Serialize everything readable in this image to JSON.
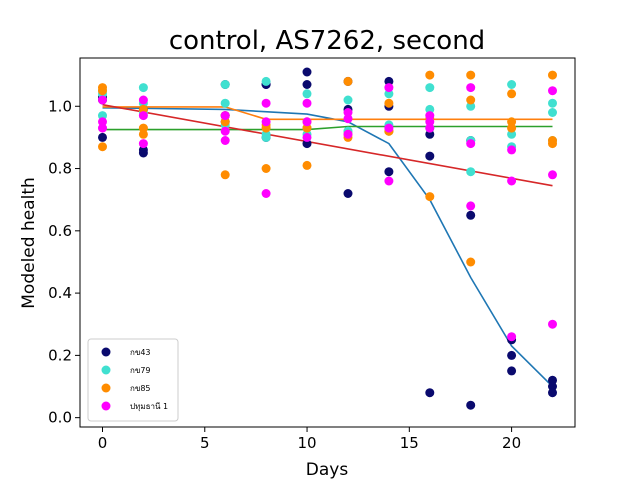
{
  "chart_data": {
    "type": "scatter",
    "title": "control, AS7262, second",
    "xlabel": "Days",
    "ylabel": "Modeled health",
    "xlim": [
      -1.1,
      23.1
    ],
    "ylim": [
      -0.03,
      1.155
    ],
    "xticks": [
      0,
      5,
      10,
      15,
      20
    ],
    "yticks": [
      0.0,
      0.2,
      0.4,
      0.6,
      0.8,
      1.0
    ],
    "ytick_labels": [
      "0.0",
      "0.2",
      "0.4",
      "0.6",
      "0.8",
      "1.0"
    ],
    "grid": false,
    "legend_position": "lower-left",
    "series": [
      {
        "name": "กข43",
        "color": "#0a0a6e",
        "points": [
          [
            0,
            1.03
          ],
          [
            0,
            0.9
          ],
          [
            0,
            1.02
          ],
          [
            2,
            0.85
          ],
          [
            2,
            0.86
          ],
          [
            2,
            0.99
          ],
          [
            6,
            1.07
          ],
          [
            6,
            0.97
          ],
          [
            6,
            0.95
          ],
          [
            8,
            1.07
          ],
          [
            8,
            0.9
          ],
          [
            8,
            1.07
          ],
          [
            10,
            1.11
          ],
          [
            10,
            1.07
          ],
          [
            10,
            0.88
          ],
          [
            12,
            1.08
          ],
          [
            12,
            0.72
          ],
          [
            12,
            0.99
          ],
          [
            14,
            1.08
          ],
          [
            14,
            0.79
          ],
          [
            14,
            1.0
          ],
          [
            16,
            0.91
          ],
          [
            16,
            0.84
          ],
          [
            16,
            0.08
          ],
          [
            18,
            0.89
          ],
          [
            18,
            0.65
          ],
          [
            18,
            0.04
          ],
          [
            20,
            0.25
          ],
          [
            20,
            0.2
          ],
          [
            20,
            0.15
          ],
          [
            22,
            0.12
          ],
          [
            22,
            0.1
          ],
          [
            22,
            0.08
          ]
        ],
        "fit": [
          [
            0,
            0.995
          ],
          [
            6,
            0.99
          ],
          [
            10,
            0.975
          ],
          [
            12,
            0.95
          ],
          [
            14,
            0.88
          ],
          [
            16,
            0.7
          ],
          [
            18,
            0.45
          ],
          [
            20,
            0.23
          ],
          [
            22,
            0.1
          ]
        ]
      },
      {
        "name": "กข79",
        "color": "#40e0d0",
        "points": [
          [
            0,
            1.05
          ],
          [
            0,
            0.97
          ],
          [
            0,
            1.04
          ],
          [
            2,
            1.06
          ],
          [
            2,
            1.01
          ],
          [
            2,
            0.98
          ],
          [
            6,
            1.07
          ],
          [
            6,
            1.01
          ],
          [
            6,
            0.94
          ],
          [
            8,
            1.08
          ],
          [
            8,
            0.9
          ],
          [
            8,
            0.91
          ],
          [
            10,
            1.04
          ],
          [
            10,
            0.91
          ],
          [
            10,
            0.93
          ],
          [
            12,
            1.02
          ],
          [
            12,
            0.92
          ],
          [
            12,
            0.92
          ],
          [
            14,
            1.04
          ],
          [
            14,
            0.94
          ],
          [
            14,
            0.92
          ],
          [
            16,
            1.06
          ],
          [
            16,
            0.99
          ],
          [
            16,
            0.93
          ],
          [
            18,
            1.0
          ],
          [
            18,
            0.79
          ],
          [
            18,
            0.89
          ],
          [
            20,
            1.07
          ],
          [
            20,
            0.91
          ],
          [
            20,
            0.87
          ],
          [
            22,
            1.01
          ],
          [
            22,
            0.98
          ],
          [
            22,
            0.89
          ]
        ],
        "fit": [
          [
            0,
            0.925
          ],
          [
            10,
            0.925
          ],
          [
            12,
            0.935
          ],
          [
            22,
            0.935
          ]
        ]
      },
      {
        "name": "กข85",
        "color": "#ff8c00",
        "points": [
          [
            0,
            1.06
          ],
          [
            0,
            0.87
          ],
          [
            0,
            1.05
          ],
          [
            2,
            0.93
          ],
          [
            2,
            0.91
          ],
          [
            2,
            0.99
          ],
          [
            6,
            0.78
          ],
          [
            6,
            0.95
          ],
          [
            6,
            0.97
          ],
          [
            8,
            0.8
          ],
          [
            8,
            0.93
          ],
          [
            8,
            0.94
          ],
          [
            10,
            0.81
          ],
          [
            10,
            0.95
          ],
          [
            10,
            0.93
          ],
          [
            12,
            0.91
          ],
          [
            12,
            1.08
          ],
          [
            12,
            0.9
          ],
          [
            14,
            1.01
          ],
          [
            14,
            0.92
          ],
          [
            14,
            0.92
          ],
          [
            16,
            1.1
          ],
          [
            16,
            0.71
          ],
          [
            16,
            0.96
          ],
          [
            18,
            1.1
          ],
          [
            18,
            0.5
          ],
          [
            18,
            1.02
          ],
          [
            20,
            1.04
          ],
          [
            20,
            0.95
          ],
          [
            20,
            0.93
          ],
          [
            22,
            1.1
          ],
          [
            22,
            0.89
          ],
          [
            22,
            0.88
          ]
        ],
        "fit": [
          [
            0,
            0.998
          ],
          [
            6,
            0.998
          ],
          [
            8,
            0.958
          ],
          [
            22,
            0.958
          ]
        ]
      },
      {
        "name": "ปทุมธานี 1",
        "color": "#ff00ff",
        "points": [
          [
            0,
            1.02
          ],
          [
            0,
            0.95
          ],
          [
            0,
            0.93
          ],
          [
            2,
            1.02
          ],
          [
            2,
            0.97
          ],
          [
            2,
            0.88
          ],
          [
            6,
            0.97
          ],
          [
            6,
            0.92
          ],
          [
            6,
            0.89
          ],
          [
            8,
            1.01
          ],
          [
            8,
            0.72
          ],
          [
            8,
            0.95
          ],
          [
            10,
            1.01
          ],
          [
            10,
            0.95
          ],
          [
            10,
            0.9
          ],
          [
            12,
            0.98
          ],
          [
            12,
            0.96
          ],
          [
            12,
            0.91
          ],
          [
            14,
            1.06
          ],
          [
            14,
            0.76
          ],
          [
            14,
            0.93
          ],
          [
            16,
            0.97
          ],
          [
            16,
            0.95
          ],
          [
            16,
            0.93
          ],
          [
            18,
            1.06
          ],
          [
            18,
            0.68
          ],
          [
            18,
            0.88
          ],
          [
            20,
            0.86
          ],
          [
            20,
            0.76
          ],
          [
            20,
            0.26
          ],
          [
            22,
            1.05
          ],
          [
            22,
            0.78
          ],
          [
            22,
            0.3
          ]
        ],
        "fit": [
          [
            0,
            1.005
          ],
          [
            22,
            0.745
          ]
        ]
      }
    ],
    "fit_colors": [
      "#1f77b4",
      "#2ca02c",
      "#ff7f0e",
      "#d62728"
    ]
  }
}
